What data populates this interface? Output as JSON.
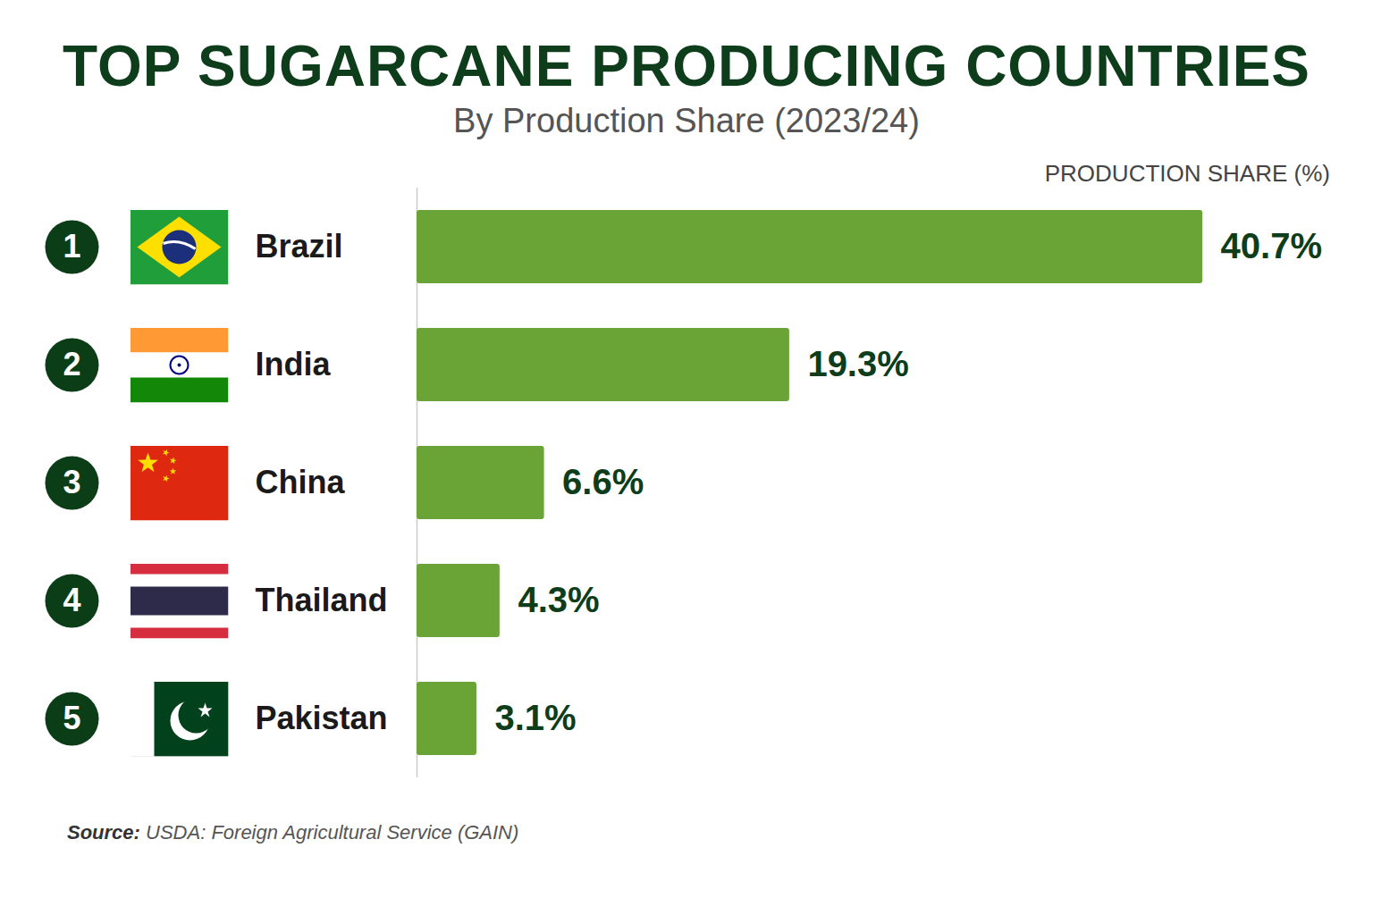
{
  "chart_data": {
    "type": "bar",
    "title": "TOP SUGARCANE PRODUCING COUNTRIES",
    "subtitle": "By Production Share (2023/24)",
    "xlabel": "PRODUCTION SHARE (%)",
    "categories": [
      "Brazil",
      "India",
      "China",
      "Thailand",
      "Pakistan"
    ],
    "ranks": [
      1,
      2,
      3,
      4,
      5
    ],
    "values": [
      40.7,
      19.3,
      6.6,
      4.3,
      3.1
    ],
    "value_labels": [
      "40.7%",
      "19.3%",
      "6.6%",
      "4.3%",
      "3.1%"
    ],
    "color": "#6aa336",
    "orientation": "horizontal",
    "data_labels": true,
    "tick_labels": false,
    "xlim": [
      0,
      45
    ],
    "source_label": "Source:",
    "source": "USDA: Foreign Agricultural Service (GAIN)"
  }
}
